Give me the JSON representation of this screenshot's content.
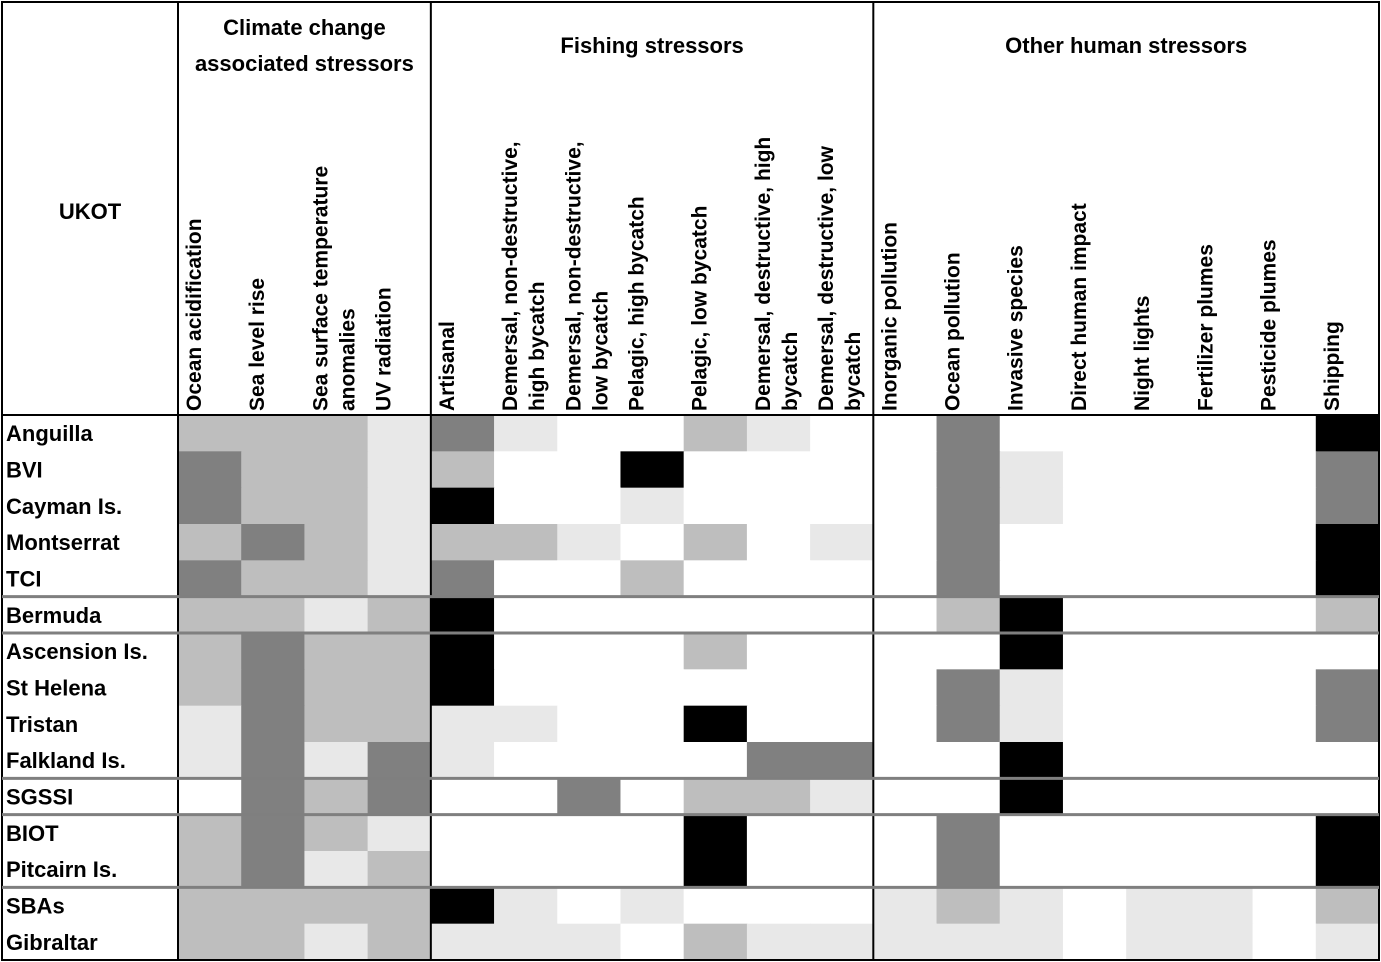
{
  "chart_data": {
    "type": "heatmap",
    "title": "",
    "row_header": "UKOT",
    "groups": [
      {
        "name": [
          "Climate change",
          "associated stressors"
        ],
        "span": 4
      },
      {
        "name": [
          "Fishing stressors"
        ],
        "span": 7
      },
      {
        "name": [
          "Other human stressors"
        ],
        "span": 8
      }
    ],
    "columns": [
      [
        "Ocean acidification"
      ],
      [
        "Sea level rise"
      ],
      [
        "Sea surface temperature",
        "anomalies"
      ],
      [
        "UV radiation"
      ],
      [
        "Artisanal"
      ],
      [
        "Demersal, non-destructive,",
        "high bycatch"
      ],
      [
        "Demersal, non-destructive,",
        "low bycatch"
      ],
      [
        "Pelagic, high bycatch"
      ],
      [
        "Pelagic, low bycatch"
      ],
      [
        "Demersal, destructive, high",
        "bycatch"
      ],
      [
        "Demersal, destructive, low",
        "bycatch"
      ],
      [
        "Inorganic pollution"
      ],
      [
        "Ocean pollution"
      ],
      [
        "Invasive species"
      ],
      [
        "Direct human impact"
      ],
      [
        "Night lights"
      ],
      [
        "Fertilizer plumes"
      ],
      [
        "Pesticide plumes"
      ],
      [
        "Shipping"
      ]
    ],
    "rows": [
      "Anguilla",
      "BVI",
      "Cayman Is.",
      "Montserrat",
      "TCI",
      "Bermuda",
      "Ascension Is.",
      "St Helena",
      "Tristan",
      "Falkland Is.",
      "SGSSI",
      "BIOT",
      "Pitcairn Is.",
      "SBAs",
      "Gibraltar"
    ],
    "row_groups": [
      5,
      1,
      4,
      1,
      2,
      2
    ],
    "levels": {
      "0": "#ffffff",
      "1": "#e8e8e8",
      "2": "#bebebe",
      "3": "#808080",
      "4": "#000000"
    },
    "values": [
      [
        2,
        2,
        2,
        1,
        3,
        1,
        0,
        0,
        2,
        1,
        0,
        0,
        3,
        0,
        0,
        0,
        0,
        0,
        4
      ],
      [
        3,
        2,
        2,
        1,
        2,
        0,
        0,
        4,
        0,
        0,
        0,
        0,
        3,
        1,
        0,
        0,
        0,
        0,
        3
      ],
      [
        3,
        2,
        2,
        1,
        4,
        0,
        0,
        1,
        0,
        0,
        0,
        0,
        3,
        1,
        0,
        0,
        0,
        0,
        3
      ],
      [
        2,
        3,
        2,
        1,
        2,
        2,
        1,
        0,
        2,
        0,
        1,
        0,
        3,
        0,
        0,
        0,
        0,
        0,
        4
      ],
      [
        3,
        2,
        2,
        1,
        3,
        0,
        0,
        2,
        0,
        0,
        0,
        0,
        3,
        0,
        0,
        0,
        0,
        0,
        4
      ],
      [
        2,
        2,
        1,
        2,
        4,
        0,
        0,
        0,
        0,
        0,
        0,
        0,
        2,
        4,
        0,
        0,
        0,
        0,
        2
      ],
      [
        2,
        3,
        2,
        2,
        4,
        0,
        0,
        0,
        2,
        0,
        0,
        0,
        0,
        4,
        0,
        0,
        0,
        0,
        0
      ],
      [
        2,
        3,
        2,
        2,
        4,
        0,
        0,
        0,
        0,
        0,
        0,
        0,
        3,
        1,
        0,
        0,
        0,
        0,
        3
      ],
      [
        1,
        3,
        2,
        2,
        1,
        1,
        0,
        0,
        4,
        0,
        0,
        0,
        3,
        1,
        0,
        0,
        0,
        0,
        3
      ],
      [
        1,
        3,
        1,
        3,
        1,
        0,
        0,
        0,
        0,
        3,
        3,
        0,
        0,
        4,
        0,
        0,
        0,
        0,
        0
      ],
      [
        0,
        3,
        2,
        3,
        0,
        0,
        3,
        0,
        2,
        2,
        1,
        0,
        0,
        4,
        0,
        0,
        0,
        0,
        0
      ],
      [
        2,
        3,
        2,
        1,
        0,
        0,
        0,
        0,
        4,
        0,
        0,
        0,
        3,
        0,
        0,
        0,
        0,
        0,
        4
      ],
      [
        2,
        3,
        1,
        2,
        0,
        0,
        0,
        0,
        4,
        0,
        0,
        0,
        3,
        0,
        0,
        0,
        0,
        0,
        4
      ],
      [
        2,
        2,
        2,
        2,
        4,
        1,
        0,
        1,
        0,
        0,
        0,
        1,
        2,
        1,
        0,
        1,
        1,
        0,
        2
      ],
      [
        2,
        2,
        1,
        2,
        1,
        1,
        1,
        0,
        2,
        1,
        1,
        1,
        1,
        1,
        0,
        1,
        1,
        0,
        1
      ]
    ]
  }
}
